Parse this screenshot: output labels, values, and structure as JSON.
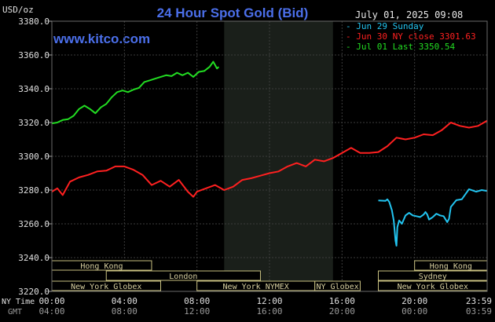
{
  "chart_data": {
    "type": "line",
    "title": "24 Hour Spot Gold (Bid)",
    "watermark": "www.kitco.com",
    "date_label": "July 01, 2025 09:08",
    "y_unit": "USD/oz",
    "ylim": [
      3220.0,
      3380.0
    ],
    "y_ticks": [
      "3380.0",
      "3360.0",
      "3340.0",
      "3320.0",
      "3300.0",
      "3280.0",
      "3260.0",
      "3240.0",
      "3220.0"
    ],
    "xlim": [
      0,
      24
    ],
    "x_tick_rows": {
      "ny_label": "NY Time",
      "gmt_label": "GMT",
      "ny_ticks": [
        "00:00",
        "04:00",
        "08:00",
        "12:00",
        "16:00",
        "20:00",
        "23:59"
      ],
      "gmt_ticks": [
        "04:00",
        "08:00",
        "12:00",
        "16:00",
        "20:00",
        "00:00",
        "03:59"
      ]
    },
    "shaded_region": [
      9.5,
      15.5
    ],
    "legend": [
      {
        "label": "- Jun 29 Sunday",
        "color": "#22c4f0"
      },
      {
        "label": "- Jun 30 NY close 3301.63",
        "color": "#ff2020"
      },
      {
        "label": "- Jul 01 Last 3350.54",
        "color": "#22dd22"
      }
    ],
    "series": [
      {
        "name": "Jun 29 Sunday",
        "color": "#22c4f0",
        "x": [
          18.0,
          18.4,
          18.5,
          18.6,
          18.75,
          18.85,
          18.9,
          18.95,
          19.0,
          19.05,
          19.15,
          19.3,
          19.5,
          19.7,
          19.9,
          20.1,
          20.3,
          20.5,
          20.6,
          20.7,
          20.8,
          21.0,
          21.2,
          21.4,
          21.6,
          21.8,
          21.9,
          22.0,
          22.3,
          22.6,
          23.0,
          23.4,
          23.7,
          23.99
        ],
        "y": [
          3273.8,
          3273.6,
          3274.5,
          3273.0,
          3268.0,
          3262.0,
          3256.0,
          3250.0,
          3247.0,
          3258.0,
          3262.0,
          3260.0,
          3265.0,
          3266.5,
          3265.0,
          3264.5,
          3264.0,
          3265.5,
          3267.0,
          3265.5,
          3262.5,
          3264.0,
          3266.0,
          3265.0,
          3264.5,
          3261.0,
          3263.0,
          3270.0,
          3274.0,
          3274.5,
          3280.5,
          3279.0,
          3280.0,
          3279.5
        ]
      },
      {
        "name": "Jun 30 NY close 3301.63",
        "color": "#ff2020",
        "x": [
          0.0,
          0.3,
          0.6,
          1.0,
          1.5,
          2.0,
          2.5,
          3.0,
          3.5,
          4.0,
          4.5,
          5.0,
          5.5,
          6.0,
          6.5,
          7.0,
          7.5,
          7.8,
          8.0,
          8.5,
          9.0,
          9.5,
          10.0,
          10.5,
          11.0,
          11.5,
          12.0,
          12.5,
          13.0,
          13.5,
          14.0,
          14.5,
          15.0,
          15.5,
          16.0,
          16.5,
          17.0,
          17.5,
          18.0,
          18.5,
          19.0,
          19.5,
          20.0,
          20.5,
          21.0,
          21.5,
          22.0,
          22.5,
          23.0,
          23.5,
          23.99
        ],
        "y": [
          3279.0,
          3281.0,
          3277.0,
          3285.0,
          3287.5,
          3289.0,
          3291.0,
          3291.5,
          3294.0,
          3294.0,
          3292.0,
          3289.0,
          3283.0,
          3285.5,
          3282.0,
          3286.0,
          3279.0,
          3276.0,
          3279.0,
          3281.0,
          3283.0,
          3280.0,
          3282.0,
          3286.0,
          3287.0,
          3288.5,
          3290.0,
          3291.0,
          3294.0,
          3296.0,
          3294.0,
          3298.0,
          3297.0,
          3299.0,
          3302.0,
          3305.0,
          3302.0,
          3302.0,
          3302.5,
          3306.0,
          3311.0,
          3310.0,
          3311.0,
          3313.0,
          3312.5,
          3315.5,
          3320.0,
          3318.0,
          3317.0,
          3318.0,
          3321.0
        ]
      },
      {
        "name": "Jul 01 Last 3350.54",
        "color": "#22dd22",
        "x": [
          0.0,
          0.3,
          0.6,
          0.9,
          1.2,
          1.5,
          1.8,
          2.1,
          2.4,
          2.7,
          3.0,
          3.3,
          3.6,
          3.9,
          4.2,
          4.5,
          4.8,
          5.1,
          5.4,
          5.7,
          6.0,
          6.3,
          6.6,
          6.9,
          7.2,
          7.5,
          7.8,
          8.1,
          8.4,
          8.7,
          8.9,
          9.0,
          9.1,
          9.2
        ],
        "y": [
          3319.5,
          3320.0,
          3321.5,
          3322.0,
          3324.0,
          3328.0,
          3330.0,
          3328.0,
          3325.5,
          3329.0,
          3331.0,
          3335.0,
          3338.0,
          3339.0,
          3338.0,
          3339.5,
          3340.5,
          3344.0,
          3345.0,
          3346.0,
          3347.0,
          3348.0,
          3347.5,
          3349.5,
          3348.0,
          3349.5,
          3347.0,
          3350.0,
          3350.5,
          3353.0,
          3356.0,
          3354.0,
          3352.0,
          3353.0
        ]
      }
    ],
    "market_sessions": [
      {
        "name": "Hong Kong",
        "start": 0.0,
        "end": 5.5,
        "row": 0
      },
      {
        "name": "London",
        "start": 3.0,
        "end": 11.5,
        "row": 1
      },
      {
        "name": "New York Globex",
        "start": 0.0,
        "end": 6.0,
        "row": 2
      },
      {
        "name": "New York NYMEX",
        "start": 8.0,
        "end": 14.5,
        "row": 2
      },
      {
        "name": "NY Globex",
        "start": 14.5,
        "end": 17.0,
        "row": 2
      },
      {
        "name": "Hong Kong",
        "start": 20.0,
        "end": 24.0,
        "row": 0
      },
      {
        "name": "Sydney",
        "start": 18.0,
        "end": 24.0,
        "row": 1
      },
      {
        "name": "New York Globex",
        "start": 18.0,
        "end": 24.0,
        "row": 2
      }
    ],
    "grid": true,
    "legend_position": "top-right"
  }
}
